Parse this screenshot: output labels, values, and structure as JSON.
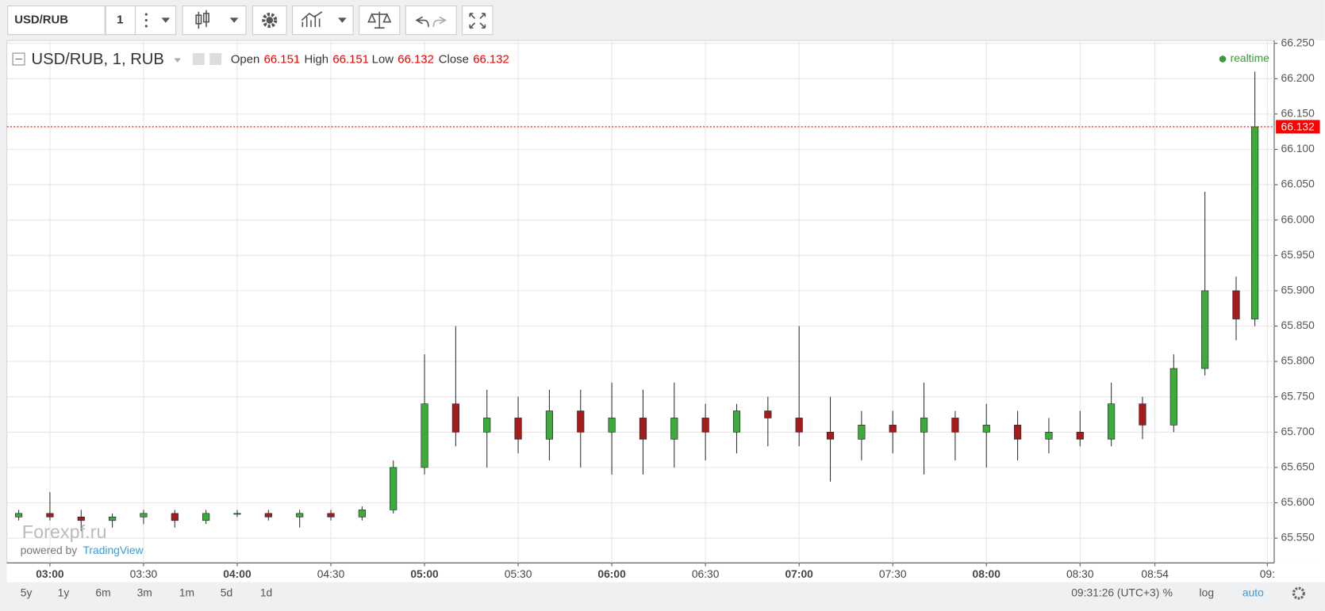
{
  "toolbar": {
    "symbol": "USD/RUB",
    "interval": "1"
  },
  "chart_data": {
    "type": "candlestick",
    "title": "USD/RUB, 1, RUB",
    "ohlc_header": [
      {
        "label": "Open",
        "value": 66.151
      },
      {
        "label": "High",
        "value": 66.151
      },
      {
        "label": "Low",
        "value": 66.132
      },
      {
        "label": "Close",
        "value": 66.132
      }
    ],
    "status": "realtime",
    "watermark": "Forexpf.ru",
    "credit": "powered by",
    "credit_link": "TradingView",
    "x": [
      170,
      180,
      190,
      200,
      210,
      220,
      230,
      240,
      250,
      260,
      270,
      280,
      290,
      300,
      310,
      320,
      330,
      340,
      350,
      360,
      370,
      380,
      390,
      400,
      410,
      420,
      430,
      440,
      450,
      460,
      470,
      480,
      490,
      500,
      510,
      520,
      530,
      540,
      550,
      560,
      566
    ],
    "open": [
      65.58,
      65.585,
      65.58,
      65.575,
      65.58,
      65.585,
      65.575,
      65.585,
      65.585,
      65.58,
      65.585,
      65.58,
      65.59,
      65.65,
      65.74,
      65.7,
      65.72,
      65.69,
      65.73,
      65.7,
      65.72,
      65.69,
      65.72,
      65.7,
      65.73,
      65.72,
      65.7,
      65.69,
      65.71,
      65.7,
      65.72,
      65.7,
      65.71,
      65.69,
      65.7,
      65.69,
      65.74,
      65.71,
      65.79,
      65.9,
      65.86
    ],
    "high": [
      65.59,
      65.615,
      65.59,
      65.585,
      65.59,
      65.59,
      65.59,
      65.59,
      65.59,
      65.59,
      65.59,
      65.595,
      65.66,
      65.81,
      65.85,
      65.76,
      65.75,
      65.76,
      65.76,
      65.77,
      65.76,
      65.77,
      65.74,
      65.74,
      65.75,
      65.85,
      65.75,
      65.73,
      65.73,
      65.77,
      65.73,
      65.74,
      65.73,
      65.72,
      65.73,
      65.77,
      65.75,
      65.81,
      66.04,
      65.92,
      66.21
    ],
    "low": [
      65.575,
      65.575,
      65.56,
      65.565,
      65.57,
      65.565,
      65.57,
      65.58,
      65.575,
      65.565,
      65.575,
      65.575,
      65.585,
      65.64,
      65.68,
      65.65,
      65.67,
      65.66,
      65.65,
      65.64,
      65.64,
      65.65,
      65.66,
      65.67,
      65.68,
      65.68,
      65.63,
      65.66,
      65.67,
      65.64,
      65.66,
      65.65,
      65.66,
      65.67,
      65.68,
      65.68,
      65.69,
      65.7,
      65.78,
      65.83,
      65.85
    ],
    "close": [
      65.585,
      65.58,
      65.575,
      65.58,
      65.585,
      65.575,
      65.585,
      65.585,
      65.58,
      65.585,
      65.58,
      65.59,
      65.65,
      65.74,
      65.7,
      65.72,
      65.69,
      65.73,
      65.7,
      65.72,
      65.69,
      65.72,
      65.7,
      65.73,
      65.72,
      65.7,
      65.69,
      65.71,
      65.7,
      65.72,
      65.7,
      65.71,
      65.69,
      65.7,
      65.69,
      65.74,
      65.71,
      65.79,
      65.9,
      65.86,
      66.132
    ],
    "up_color": "#3cab3c",
    "down_color": "#a41c1c",
    "xlim": [
      166.2,
      572.2
    ],
    "ylim": [
      65.515,
      66.254
    ],
    "xticks": [
      {
        "value": 180,
        "label": "03:00"
      },
      {
        "value": 210,
        "label": "03:30"
      },
      {
        "value": 240,
        "label": "04:00"
      },
      {
        "value": 270,
        "label": "04:30"
      },
      {
        "value": 300,
        "label": "05:00"
      },
      {
        "value": 330,
        "label": "05:30"
      },
      {
        "value": 360,
        "label": "06:00"
      },
      {
        "value": 390,
        "label": "06:30"
      },
      {
        "value": 420,
        "label": "07:00"
      },
      {
        "value": 450,
        "label": "07:30"
      },
      {
        "value": 480,
        "label": "08:00"
      },
      {
        "value": 510,
        "label": "08:30"
      },
      {
        "value": 534,
        "label": "08:54"
      },
      {
        "value": 570,
        "label": "09:"
      }
    ],
    "yticks": [
      {
        "value": 65.55,
        "label": "65.550"
      },
      {
        "value": 65.6,
        "label": "65.600"
      },
      {
        "value": 65.65,
        "label": "65.650"
      },
      {
        "value": 65.7,
        "label": "65.700"
      },
      {
        "value": 65.75,
        "label": "65.750"
      },
      {
        "value": 65.8,
        "label": "65.800"
      },
      {
        "value": 65.85,
        "label": "65.850"
      },
      {
        "value": 65.9,
        "label": "65.900"
      },
      {
        "value": 65.95,
        "label": "65.950"
      },
      {
        "value": 66,
        "label": "66.000"
      },
      {
        "value": 66.05,
        "label": "66.050"
      },
      {
        "value": 66.1,
        "label": "66.100"
      },
      {
        "value": 66.15,
        "label": "66.150"
      },
      {
        "value": 66.2,
        "label": "66.200"
      },
      {
        "value": 66.25,
        "label": "66.250"
      }
    ],
    "last_price": 66.132,
    "last_price_color": "#ff0000",
    "grid": true
  },
  "footer": {
    "ranges": [
      "5y",
      "1y",
      "6m",
      "3m",
      "1m",
      "5d",
      "1d"
    ],
    "clock": "09:31:26 (UTC+3)",
    "options": [
      "%",
      "log",
      "auto"
    ]
  }
}
